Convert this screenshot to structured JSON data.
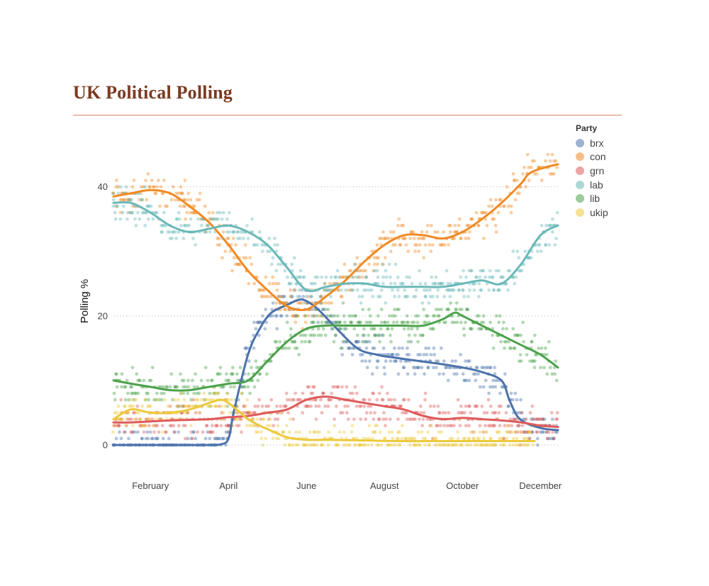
{
  "page": {
    "title": "UK Political Polling"
  },
  "chart_data": {
    "type": "scatter+line",
    "title": "UK Political Polling",
    "xlabel": "",
    "ylabel": "Polling %",
    "x_ticks": [
      "February",
      "April",
      "June",
      "August",
      "October",
      "December"
    ],
    "x_tick_values": [
      1.5,
      3.5,
      5.5,
      7.5,
      9.5,
      11.5
    ],
    "xlim": [
      0.55,
      11.95
    ],
    "ylim": [
      0,
      46
    ],
    "y_ticks": [
      0,
      20,
      40
    ],
    "grid": "horizontal dotted",
    "legend": {
      "title": "Party",
      "position": "top-right"
    },
    "series": [
      {
        "name": "brx",
        "color": "#4b72aa",
        "x": [
          0.55,
          1,
          2,
          3,
          3.3,
          3.5,
          3.65,
          4.0,
          4.3,
          4.6,
          5.0,
          5.3,
          5.5,
          5.8,
          6.2,
          6.8,
          7.3,
          7.8,
          8.4,
          9.0,
          9.5,
          10.0,
          10.5,
          10.7,
          10.9,
          11.1,
          11.3,
          11.6,
          11.95
        ],
        "values": [
          0,
          0,
          0,
          0,
          0.1,
          1,
          5.5,
          14,
          18,
          20.5,
          21.7,
          22.5,
          22.3,
          21,
          18.5,
          15,
          14,
          13.5,
          13,
          12.5,
          12,
          11.3,
          10,
          7,
          4.5,
          3.5,
          3,
          2.5,
          2.3
        ]
      },
      {
        "name": "con",
        "color": "#f08a24",
        "x": [
          0.55,
          1,
          1.5,
          2,
          2.5,
          3,
          3.5,
          4.0,
          4.5,
          5.0,
          5.5,
          6.0,
          6.5,
          7.0,
          7.5,
          8.0,
          8.5,
          9.0,
          9.5,
          10.0,
          10.5,
          11.0,
          11.2,
          11.5,
          11.95
        ],
        "values": [
          38.5,
          39,
          39.5,
          39,
          37,
          34.5,
          31,
          27,
          24,
          21.5,
          21,
          23,
          25.5,
          28.5,
          31,
          32.5,
          32.5,
          32,
          33,
          35,
          37.5,
          40.5,
          42,
          42.8,
          43.5
        ]
      },
      {
        "name": "grn",
        "color": "#de5a5a",
        "x": [
          0.55,
          1,
          2,
          3,
          3.5,
          4,
          4.5,
          5,
          5.5,
          6,
          6.5,
          7,
          7.5,
          8,
          8.5,
          9,
          9.5,
          10,
          10.5,
          11,
          11.5,
          11.95
        ],
        "values": [
          3.5,
          3.5,
          3.8,
          4,
          4.3,
          4.5,
          5,
          5.5,
          7,
          7.5,
          7,
          6.5,
          6,
          5.5,
          4.5,
          4,
          4.2,
          4,
          3.8,
          3.5,
          3,
          2.8
        ]
      },
      {
        "name": "lab",
        "color": "#6ab8b8",
        "x": [
          0.55,
          1,
          1.5,
          2,
          2.5,
          3,
          3.5,
          4.0,
          4.5,
          5.0,
          5.5,
          6.0,
          6.5,
          7.0,
          7.5,
          8.0,
          8.5,
          9.0,
          9.5,
          10.0,
          10.5,
          11.0,
          11.5,
          11.95
        ],
        "values": [
          37.5,
          37.5,
          36,
          34,
          33,
          33.5,
          34,
          33,
          31,
          27.5,
          24,
          24.5,
          25,
          25,
          24.5,
          24.5,
          24.5,
          24.5,
          25,
          25.5,
          25,
          28,
          32.5,
          34
        ]
      },
      {
        "name": "lib",
        "color": "#4ba24b",
        "x": [
          0.55,
          1,
          1.5,
          2,
          2.5,
          3,
          3.5,
          4.0,
          4.5,
          5.0,
          5.5,
          6.0,
          6.5,
          7.0,
          7.5,
          8.0,
          8.5,
          9.0,
          9.3,
          9.5,
          10.0,
          10.5,
          11.0,
          11.5,
          11.95
        ],
        "values": [
          10,
          9.5,
          9,
          8.5,
          8.5,
          9,
          9.5,
          10,
          13,
          16,
          18,
          18.5,
          18.5,
          18.5,
          18.5,
          18.5,
          18.5,
          19.5,
          20.5,
          20,
          18.5,
          17,
          15.5,
          14,
          12
        ]
      },
      {
        "name": "ukip",
        "color": "#ecc93a",
        "x": [
          0.55,
          1,
          1.5,
          2,
          2.5,
          3,
          3.3,
          3.5,
          3.8,
          4.0,
          4.3,
          4.6,
          5.0,
          5.5,
          6.0,
          7.0,
          8.0,
          9.0,
          10.0,
          11.0,
          11.35
        ],
        "values": [
          4,
          5.5,
          5,
          5,
          5.5,
          6.5,
          7,
          6.5,
          5,
          4,
          3,
          2.2,
          1.2,
          0.8,
          0.8,
          0.7,
          0.6,
          0.6,
          0.6,
          0.6,
          0.6
        ]
      }
    ]
  }
}
